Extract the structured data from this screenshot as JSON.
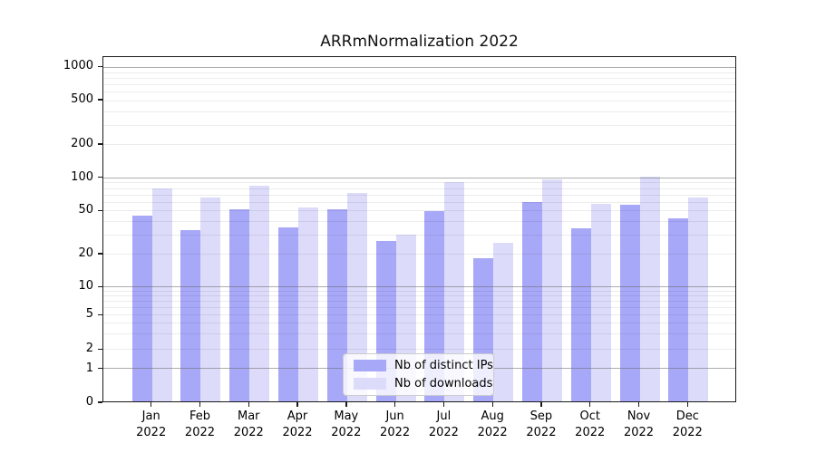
{
  "chart_data": {
    "type": "bar",
    "title": "ARRmNormalization 2022",
    "categories": [
      "Jan 2022",
      "Feb 2022",
      "Mar 2022",
      "Apr 2022",
      "May 2022",
      "Jun 2022",
      "Jul 2022",
      "Aug 2022",
      "Sep 2022",
      "Oct 2022",
      "Nov 2022",
      "Dec 2022"
    ],
    "series": [
      {
        "name": "Nb of distinct IPs",
        "color": "#a8a8f8",
        "values": [
          45,
          33,
          51,
          35,
          51,
          26,
          49,
          18,
          60,
          34,
          56,
          42
        ]
      },
      {
        "name": "Nb of downloads",
        "color": "#dcdcfa",
        "values": [
          80,
          66,
          84,
          53,
          72,
          30,
          91,
          25,
          96,
          57,
          102,
          66
        ]
      }
    ],
    "xlabel": "",
    "ylabel": "",
    "yscale": "symlog",
    "yticks": [
      0,
      1,
      2,
      5,
      10,
      20,
      50,
      100,
      200,
      500,
      1000
    ],
    "ylim": [
      0,
      1250
    ],
    "grid": "horizontal",
    "legend_position": "lower center"
  }
}
